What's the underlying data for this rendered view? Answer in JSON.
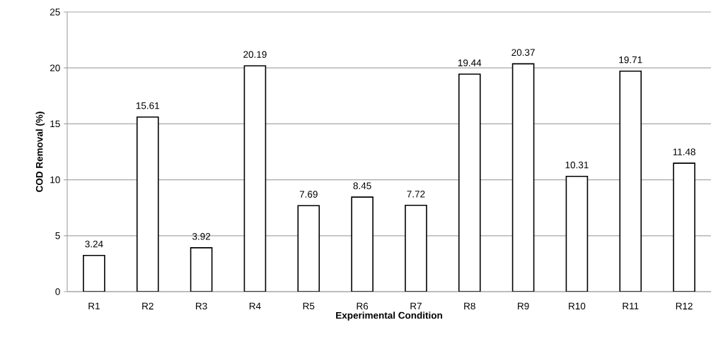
{
  "chart_data": {
    "type": "bar",
    "xlabel": "Experimental Condition",
    "ylabel": "COD Removal (%)",
    "categories": [
      "R1",
      "R2",
      "R3",
      "R4",
      "R5",
      "R6",
      "R7",
      "R8",
      "R9",
      "R10",
      "R11",
      "R12"
    ],
    "values": [
      3.24,
      15.61,
      3.92,
      20.19,
      7.69,
      8.45,
      7.72,
      19.44,
      20.37,
      10.31,
      19.71,
      11.48
    ],
    "color": "#ffffff",
    "ylim": [
      0,
      25
    ],
    "yticks": [
      0,
      5,
      10,
      15,
      20,
      25
    ],
    "grid": "y",
    "data_labels": true
  }
}
